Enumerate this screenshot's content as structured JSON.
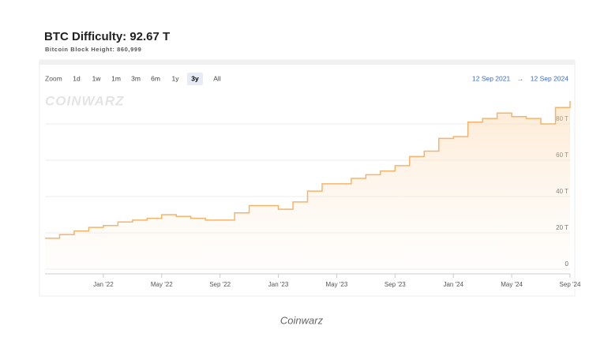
{
  "header": {
    "title": "BTC Difficulty: 92.67 T",
    "subtitle": "Bitcoin Block Height: 860,999"
  },
  "toolbar": {
    "zoom_label": "Zoom",
    "buttons": [
      "1d",
      "1w",
      "1m",
      "3m",
      "6m",
      "1y",
      "3y",
      "All"
    ],
    "selected": "3y",
    "range_start": "12 Sep 2021",
    "range_separator": "→",
    "range_end": "12 Sep 2024"
  },
  "watermark": "COINWARZ",
  "chart_data": {
    "type": "line",
    "step": true,
    "color": "#f5b46b",
    "x": [
      "2021-09",
      "2021-10",
      "2021-11",
      "2021-12",
      "2022-01",
      "2022-02",
      "2022-03",
      "2022-04",
      "2022-05",
      "2022-06",
      "2022-07",
      "2022-08",
      "2022-09",
      "2022-10",
      "2022-11",
      "2022-12",
      "2023-01",
      "2023-02",
      "2023-03",
      "2023-04",
      "2023-05",
      "2023-06",
      "2023-07",
      "2023-08",
      "2023-09",
      "2023-10",
      "2023-11",
      "2023-12",
      "2024-01",
      "2024-02",
      "2024-03",
      "2024-04",
      "2024-05",
      "2024-06",
      "2024-07",
      "2024-08",
      "2024-09"
    ],
    "values": [
      17,
      19,
      21,
      23,
      24,
      26,
      27,
      28,
      30,
      29,
      28,
      27,
      27,
      31,
      35,
      35,
      33,
      37,
      43,
      47,
      47,
      50,
      52,
      54,
      57,
      62,
      65,
      72,
      73,
      81,
      83,
      86,
      84,
      83,
      80,
      89,
      92.67
    ],
    "xlim": [
      "2021-09",
      "2024-09"
    ],
    "xticks": [
      {
        "value": "2022-01",
        "label": "Jan '22"
      },
      {
        "value": "2022-05",
        "label": "May '22"
      },
      {
        "value": "2022-09",
        "label": "Sep '22"
      },
      {
        "value": "2023-01",
        "label": "Jan '23"
      },
      {
        "value": "2023-05",
        "label": "May '23"
      },
      {
        "value": "2023-09",
        "label": "Sep '23"
      },
      {
        "value": "2024-01",
        "label": "Jan '24"
      },
      {
        "value": "2024-05",
        "label": "May '24"
      },
      {
        "value": "2024-09",
        "label": "Sep '24"
      }
    ],
    "ylim": [
      0,
      100
    ],
    "yticks": [
      {
        "value": 0,
        "label": "0"
      },
      {
        "value": 20,
        "label": "20 T"
      },
      {
        "value": 40,
        "label": "40 T"
      },
      {
        "value": 60,
        "label": "60 T"
      },
      {
        "value": 80,
        "label": "80 T"
      }
    ],
    "grid": true
  },
  "caption": "Coinwarz"
}
